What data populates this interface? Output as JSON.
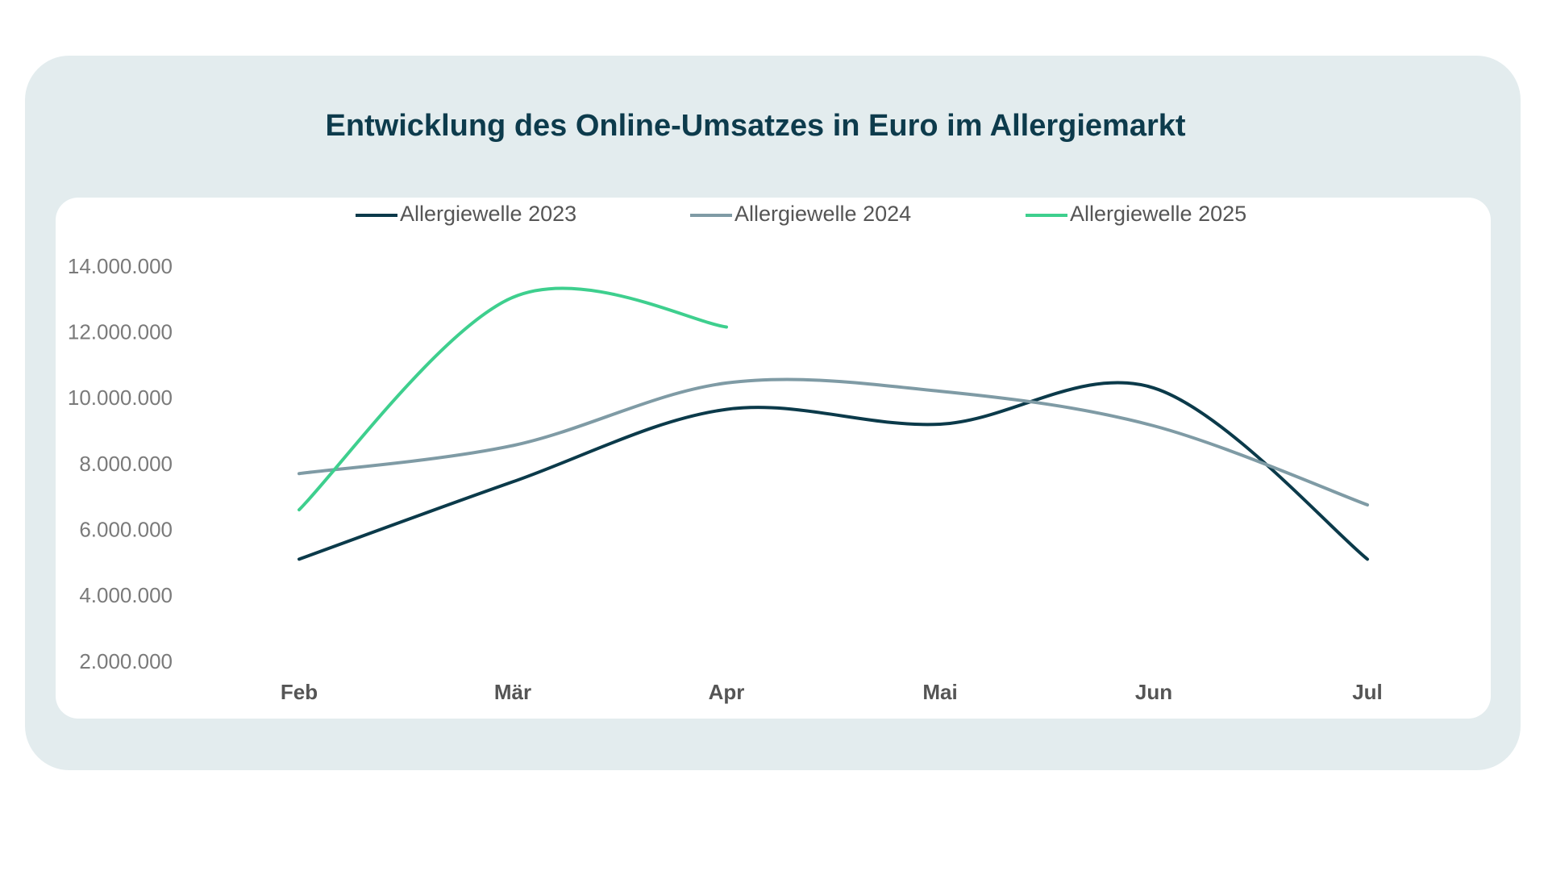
{
  "chart_data": {
    "type": "line",
    "title": "Entwicklung des Online-Umsatzes in Euro im Allergiemarkt",
    "categories": [
      "Feb",
      "Mär",
      "Apr",
      "Mai",
      "Jun",
      "Jul"
    ],
    "series": [
      {
        "name": "Allergiewelle 2023",
        "color": "#0b3a4a",
        "values": [
          5150000,
          7500000,
          9700000,
          9250000,
          10350000,
          5150000
        ]
      },
      {
        "name": "Allergiewelle 2024",
        "color": "#7f9ba5",
        "values": [
          7750000,
          8600000,
          10500000,
          10250000,
          9200000,
          6800000
        ]
      },
      {
        "name": "Allergiewelle 2025",
        "color": "#3ecf8e",
        "values": [
          6650000,
          13100000,
          12200000,
          null,
          null,
          null
        ]
      }
    ],
    "ylim": [
      2000000,
      14000000
    ],
    "yticks": [
      {
        "value": 2000000,
        "label": "2.000.000"
      },
      {
        "value": 4000000,
        "label": "4.000.000"
      },
      {
        "value": 6000000,
        "label": "6.000.000"
      },
      {
        "value": 8000000,
        "label": "8.000.000"
      },
      {
        "value": 10000000,
        "label": "10.000.000"
      },
      {
        "value": 12000000,
        "label": "12.000.000"
      },
      {
        "value": 14000000,
        "label": "14.000.000"
      }
    ],
    "grid": false,
    "smooth": true,
    "legend": "top"
  }
}
